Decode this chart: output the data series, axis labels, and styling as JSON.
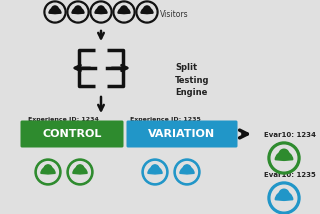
{
  "bg_color": "#e0e0e0",
  "visitor_icon_color": "#111111",
  "split_engine_color": "#111111",
  "arrow_color": "#111111",
  "control_color": "#2e8b2e",
  "variation_color": "#2196c8",
  "control_text": "CONTROL",
  "variation_text": "VARIATION",
  "control_label": "Experience ID: 1234",
  "variation_label": "Experience ID: 1235",
  "split_label_lines": [
    "Split",
    "Testing",
    "Engine"
  ],
  "evar_1234": "Evar10: 1234",
  "evar_1235": "Evar10: 1235",
  "visitors_label": "Visitors",
  "person_icon_green": "#2e8b2e",
  "person_icon_blue": "#2196c8",
  "person_visitor_color": "#111111"
}
